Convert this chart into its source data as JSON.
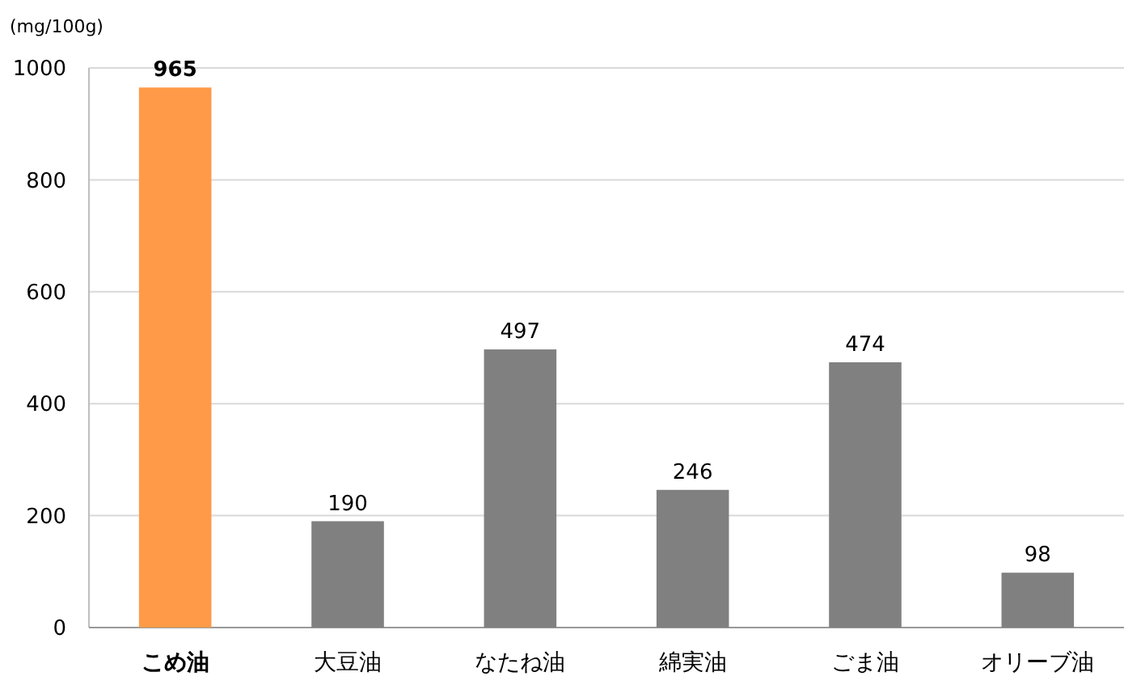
{
  "chart_data": {
    "type": "bar",
    "ylabel": "(mg/100g)",
    "categories": [
      "こめ油",
      "大豆油",
      "なたね油",
      "綿実油",
      "ごま油",
      "オリーブ油"
    ],
    "values": [
      965,
      190,
      497,
      246,
      474,
      98
    ],
    "colors": [
      "#ff9a48",
      "#808080",
      "#808080",
      "#808080",
      "#808080",
      "#808080"
    ],
    "ylim": [
      0,
      1000
    ],
    "yticks": [
      0,
      200,
      400,
      600,
      800,
      1000
    ],
    "grid": "y",
    "data_labels": true
  }
}
